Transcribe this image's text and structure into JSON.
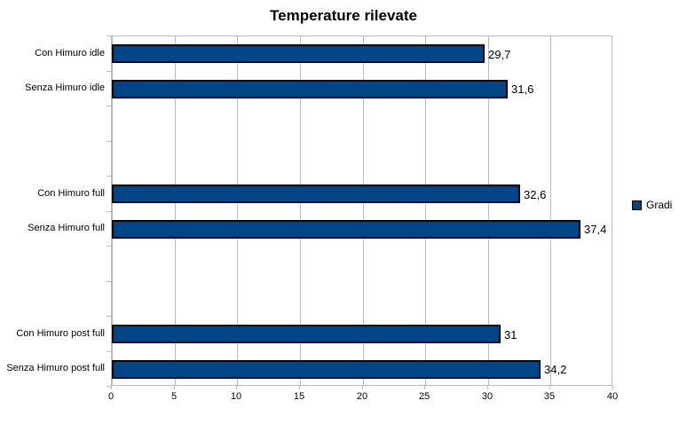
{
  "chart_data": {
    "type": "bar",
    "orientation": "horizontal",
    "title": "Temperature rilevate",
    "series_name": "Gradi",
    "categories": [
      "Con Himuro idle",
      "Senza Himuro idle",
      "Con Himuro full",
      "Senza Himuro full",
      "Con Himuro post full",
      "Senza Himuro post full"
    ],
    "values": [
      29.7,
      31.6,
      32.6,
      37.4,
      31,
      34.2
    ],
    "value_labels": [
      "29,7",
      "31,6",
      "32,6",
      "37,4",
      "31",
      "34,2"
    ],
    "xlim": [
      0,
      40
    ],
    "xticks": [
      0,
      5,
      10,
      15,
      20,
      25,
      30,
      35,
      40
    ],
    "xtick_labels": [
      "0",
      "5",
      "10",
      "15",
      "20",
      "25",
      "30",
      "35",
      "40"
    ],
    "grid": "vertical-only",
    "legend_position": "right",
    "bar_slots": [
      0,
      1,
      4,
      5,
      8,
      9
    ],
    "total_slots": 10,
    "colors": {
      "bar": "#004586",
      "bar_border": "#000000",
      "grid": "#b9b9b9",
      "text": "#000000",
      "background": "#ffffff"
    }
  }
}
